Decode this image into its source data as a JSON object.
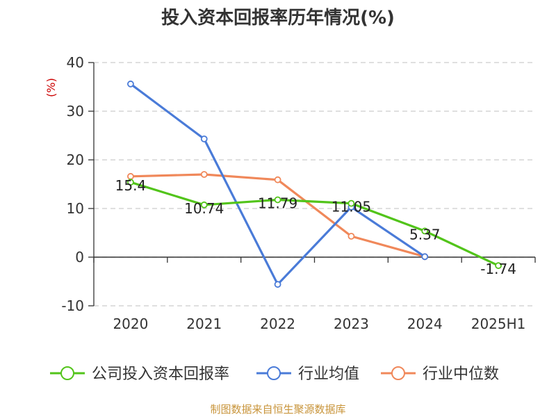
{
  "chart_data": {
    "type": "line",
    "title": "投入资本回报率历年情况(%)",
    "ylabel": "(%)",
    "categories": [
      "2020",
      "2021",
      "2022",
      "2023",
      "2024",
      "2025H1"
    ],
    "ylim": [
      -10,
      40
    ],
    "yticks": [
      "40",
      "30",
      "20",
      "10",
      "0",
      "-10"
    ],
    "grid": true,
    "legend_position": "bottom",
    "series": [
      {
        "name": "公司投入资本回报率",
        "color": "#52c41a",
        "values": [
          15.4,
          10.74,
          11.79,
          11.05,
          5.37,
          -1.74
        ],
        "labels": [
          "15.4",
          "10.74",
          "11.79",
          "11.05",
          "5.37",
          "-1.74"
        ]
      },
      {
        "name": "行业均值",
        "color": "#4a7bd8",
        "values": [
          35.6,
          24.3,
          -5.6,
          10.3,
          0.1,
          null
        ]
      },
      {
        "name": "行业中位数",
        "color": "#f0885a",
        "values": [
          16.6,
          17.0,
          15.9,
          4.3,
          0.1,
          null
        ]
      }
    ],
    "source": "制图数据来自恒生聚源数据库",
    "colors": {
      "axis": "#333333",
      "grid": "#cccccc",
      "unit": "#cc0000",
      "source": "#c8943a"
    }
  }
}
